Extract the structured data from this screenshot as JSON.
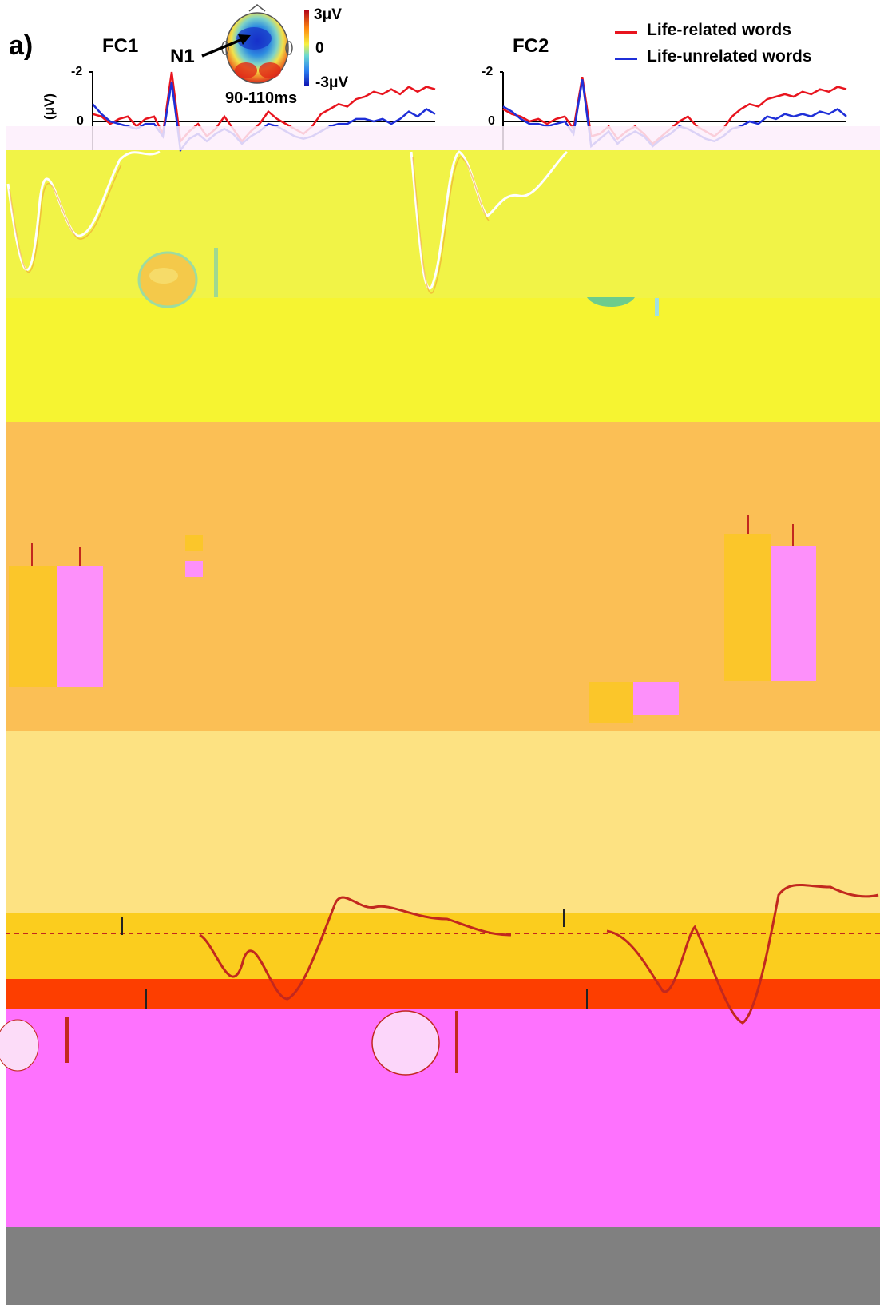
{
  "panel_a": {
    "label": "a)",
    "topomap": {
      "component": "N1",
      "window": "90-110ms",
      "colorbar": {
        "max": "3μV",
        "mid": "0",
        "min": "-3μV"
      }
    }
  },
  "legend": {
    "series": [
      {
        "name": "Life-related words",
        "color": "#e8141e"
      },
      {
        "name": "Life-unrelated words",
        "color": "#1f2fd8"
      }
    ]
  },
  "chart_data": [
    {
      "type": "line",
      "title": "FC1",
      "ylabel": "(μV)",
      "yticks": [
        "-2",
        "0"
      ],
      "y_inverted": true,
      "series": [
        {
          "name": "Life-related words",
          "values": [
            -0.3,
            -0.2,
            0.1,
            -0.1,
            -0.2,
            0.2,
            -0.1,
            -0.2,
            0.5,
            -2.0,
            0.8,
            0.4,
            0.1,
            0.6,
            0.3,
            -0.2,
            0.3,
            0.8,
            0.4,
            0.1,
            -0.4,
            -0.1,
            0.1,
            0.3,
            0.5,
            0.2,
            -0.3,
            -0.5,
            -0.7,
            -0.6,
            -0.9,
            -1.0,
            -1.2,
            -1.1,
            -1.3,
            -1.1,
            -1.4,
            -1.2,
            -1.4,
            -1.3
          ]
        },
        {
          "name": "Life-unrelated words",
          "values": [
            -0.7,
            -0.3,
            0.0,
            0.1,
            0.2,
            0.3,
            0.1,
            0.1,
            0.6,
            -1.6,
            1.2,
            0.7,
            0.5,
            0.8,
            0.5,
            0.3,
            0.5,
            0.9,
            0.6,
            0.4,
            0.1,
            0.2,
            0.4,
            0.6,
            0.7,
            0.6,
            0.4,
            0.2,
            0.1,
            0.1,
            -0.1,
            -0.1,
            0.0,
            -0.1,
            0.1,
            -0.1,
            -0.4,
            -0.2,
            -0.5,
            -0.3
          ]
        }
      ]
    },
    {
      "type": "line",
      "title": "FC2",
      "yticks": [
        "-2",
        "0"
      ],
      "y_inverted": true,
      "series": [
        {
          "name": "Life-related words",
          "values": [
            -0.5,
            -0.3,
            -0.2,
            0.0,
            -0.1,
            0.1,
            -0.1,
            -0.2,
            0.3,
            -1.8,
            0.6,
            0.5,
            0.2,
            0.7,
            0.4,
            0.2,
            0.5,
            0.9,
            0.6,
            0.3,
            0.0,
            -0.2,
            0.2,
            0.4,
            0.6,
            0.3,
            -0.2,
            -0.5,
            -0.7,
            -0.6,
            -0.9,
            -1.0,
            -1.1,
            -1.0,
            -1.2,
            -1.1,
            -1.3,
            -1.2,
            -1.4,
            -1.3
          ]
        },
        {
          "name": "Life-unrelated words",
          "values": [
            -0.6,
            -0.4,
            -0.1,
            0.1,
            0.1,
            0.2,
            0.1,
            0.0,
            0.5,
            -1.7,
            1.0,
            0.7,
            0.4,
            0.9,
            0.6,
            0.4,
            0.6,
            1.0,
            0.7,
            0.5,
            0.2,
            0.3,
            0.5,
            0.7,
            0.8,
            0.6,
            0.3,
            0.2,
            0.0,
            0.1,
            -0.2,
            -0.1,
            -0.3,
            -0.2,
            -0.3,
            -0.2,
            -0.4,
            -0.3,
            -0.5,
            -0.2
          ]
        }
      ]
    }
  ],
  "colors": {
    "yellow": "#f2f348",
    "orange": "#fbbf55",
    "light_orange": "#fde282",
    "deep_yellow": "#fbcd1e",
    "red_orange": "#fd3e00",
    "magenta": "#fe72fe",
    "gray": "#808080",
    "bar_orange": "#fbc62a",
    "bar_pink": "#fd90fa",
    "trace": "#fefefe",
    "garble": "#c2281e"
  }
}
